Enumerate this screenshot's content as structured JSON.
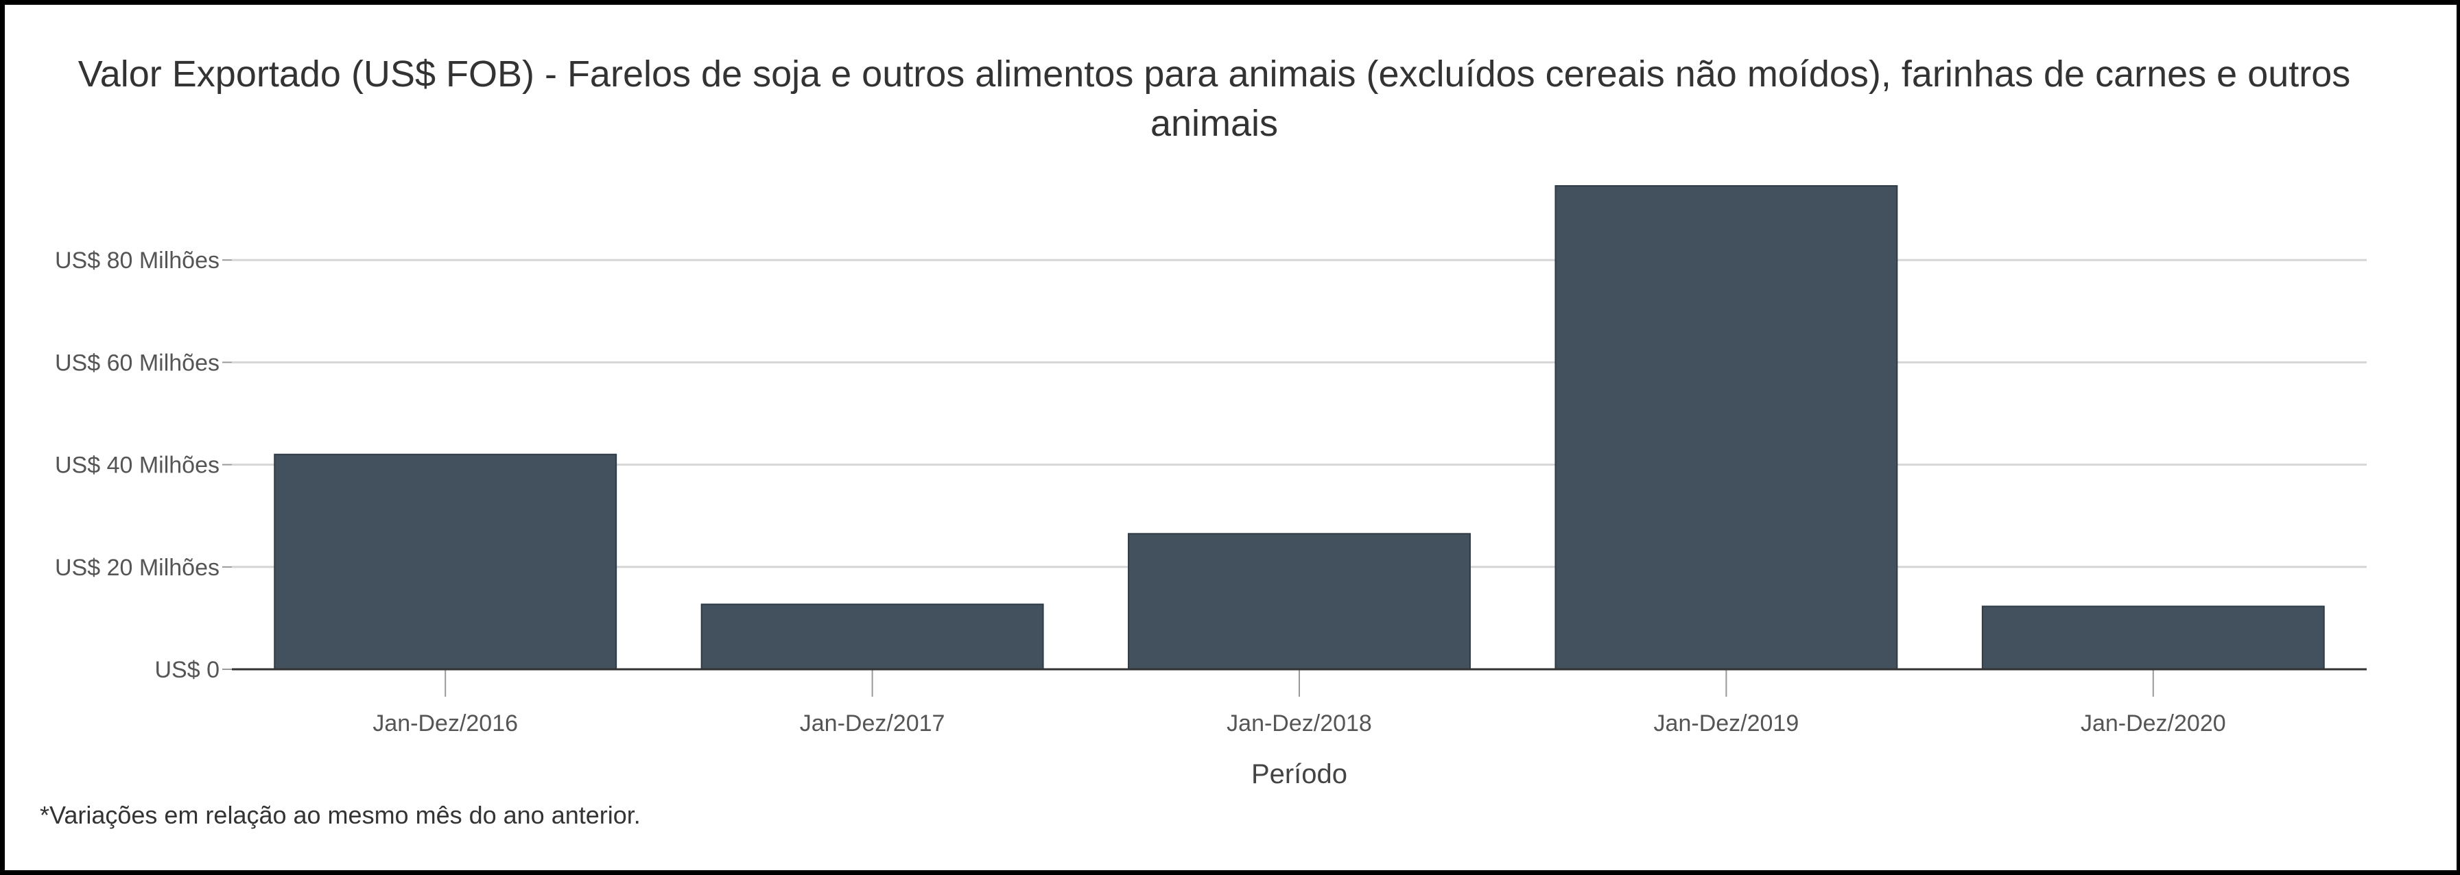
{
  "title": "Valor Exportado (US$ FOB) - Farelos de soja e outros alimentos para animais (excluídos cereais não moídos), farinhas de carnes e outros animais",
  "footnote": "*Variações em relação ao mesmo mês do ano anterior.",
  "chart_data": {
    "type": "bar",
    "categories": [
      "Jan-Dez/2016",
      "Jan-Dez/2017",
      "Jan-Dez/2018",
      "Jan-Dez/2019",
      "Jan-Dez/2020"
    ],
    "values": [
      42000000,
      12700000,
      26500000,
      94500000,
      12300000
    ],
    "ylim": [
      0,
      100000000
    ],
    "yticks": [
      0,
      20000000,
      40000000,
      60000000,
      80000000
    ],
    "ytick_labels": [
      "US$ 0",
      "US$ 20 Milhões",
      "US$ 40 Milhões",
      "US$ 60 Milhões",
      "US$ 80 Milhões"
    ],
    "xlabel": "Período",
    "ylabel": "",
    "grid": true,
    "colors": {
      "bar": "#43515f",
      "bar_border": "#2f3b46",
      "grid": "#d6d6d6",
      "axis": "#333333"
    }
  }
}
